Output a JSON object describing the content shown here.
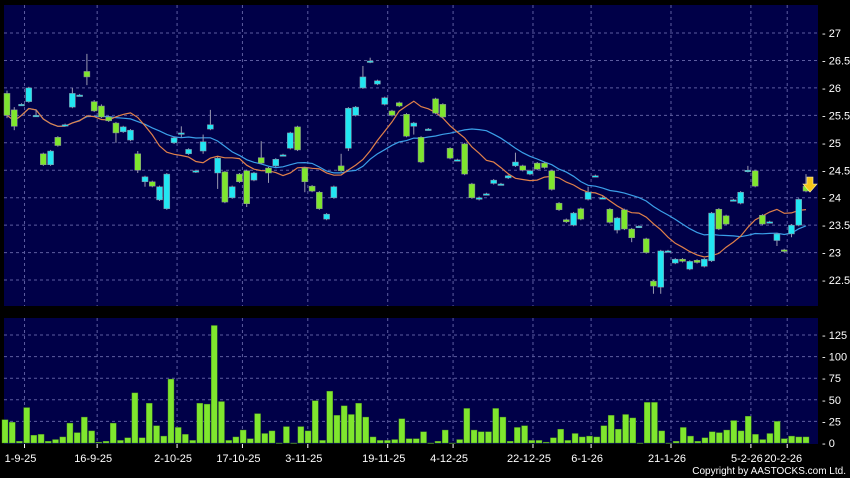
{
  "chart_data": [
    {
      "type": "candlestick",
      "panel": "price",
      "ylim": [
        22.2,
        27.5
      ],
      "yticks": [
        "22.5",
        "23",
        "23.5",
        "24",
        "24.5",
        "25",
        "25.5",
        "26",
        "26.5",
        "27"
      ],
      "grid": true,
      "colors": {
        "up": "#22e6f2",
        "down": "#7fe62e",
        "ma_short": "#e0804a",
        "ma_long": "#3b9fe8",
        "background": "#000048",
        "grid": "#5d5da0",
        "marker": "#f5c518"
      },
      "moving_averages": [
        10,
        20
      ],
      "last_marker": "down-arrow",
      "ohlc": [
        [
          25.9,
          25.95,
          25.45,
          25.5
        ],
        [
          25.6,
          25.65,
          25.23,
          25.3
        ],
        [
          25.7,
          25.72,
          25.68,
          25.7
        ],
        [
          25.75,
          26.02,
          25.73,
          26.0
        ],
        [
          25.5,
          25.6,
          25.47,
          25.5
        ],
        [
          24.8,
          24.82,
          24.58,
          24.6
        ],
        [
          24.6,
          24.87,
          24.58,
          24.85
        ],
        [
          25.1,
          25.12,
          24.93,
          24.95
        ],
        [
          25.33,
          25.35,
          25.31,
          25.33
        ],
        [
          25.65,
          26.0,
          25.63,
          25.9
        ],
        [
          25.87,
          25.89,
          25.85,
          25.87
        ],
        [
          26.3,
          26.62,
          26.05,
          26.2
        ],
        [
          25.75,
          25.78,
          25.56,
          25.58
        ],
        [
          25.67,
          25.7,
          25.45,
          25.47
        ],
        [
          25.47,
          25.49,
          25.38,
          25.4
        ],
        [
          25.36,
          25.38,
          25.0,
          25.18
        ],
        [
          25.2,
          25.31,
          25.18,
          25.29
        ],
        [
          25.05,
          25.25,
          25.03,
          25.23
        ],
        [
          24.8,
          24.85,
          24.45,
          24.5
        ],
        [
          24.29,
          24.4,
          24.2,
          24.38
        ],
        [
          24.29,
          24.31,
          24.19,
          24.21
        ],
        [
          23.96,
          24.22,
          23.94,
          24.2
        ],
        [
          23.8,
          24.45,
          23.78,
          24.43
        ],
        [
          25.0,
          25.11,
          24.98,
          25.09
        ],
        [
          25.18,
          25.3,
          25.1,
          25.18
        ],
        [
          24.8,
          24.9,
          24.78,
          24.88
        ],
        [
          24.49,
          24.51,
          24.45,
          24.49
        ],
        [
          24.85,
          25.15,
          24.8,
          25.02
        ],
        [
          25.25,
          25.6,
          25.23,
          25.33
        ],
        [
          24.45,
          24.74,
          24.16,
          24.72
        ],
        [
          24.47,
          24.49,
          23.9,
          23.92
        ],
        [
          24.0,
          24.22,
          23.98,
          24.2
        ],
        [
          24.43,
          24.45,
          24.27,
          24.29
        ],
        [
          24.49,
          24.51,
          23.83,
          23.89
        ],
        [
          24.32,
          24.47,
          24.3,
          24.45
        ],
        [
          24.73,
          25.03,
          24.61,
          24.63
        ],
        [
          24.54,
          24.56,
          24.27,
          24.45
        ],
        [
          24.58,
          24.72,
          24.56,
          24.7
        ],
        [
          24.78,
          24.8,
          24.76,
          24.78
        ],
        [
          24.9,
          25.2,
          24.88,
          25.18
        ],
        [
          25.29,
          25.31,
          24.85,
          24.87
        ],
        [
          24.54,
          24.56,
          24.1,
          24.29
        ],
        [
          24.21,
          24.23,
          24.1,
          24.12
        ],
        [
          24.1,
          24.12,
          23.78,
          23.8
        ],
        [
          23.61,
          23.72,
          23.59,
          23.7
        ],
        [
          24.0,
          24.22,
          23.98,
          24.2
        ],
        [
          24.58,
          24.8,
          24.47,
          24.49
        ],
        [
          24.9,
          25.65,
          24.85,
          25.63
        ],
        [
          25.5,
          25.67,
          25.48,
          25.65
        ],
        [
          26.0,
          26.4,
          25.98,
          26.2
        ],
        [
          26.49,
          26.55,
          26.45,
          26.49
        ],
        [
          26.07,
          26.15,
          26.05,
          26.13
        ],
        [
          25.7,
          25.84,
          25.68,
          25.82
        ],
        [
          25.58,
          25.6,
          25.48,
          25.5
        ],
        [
          25.73,
          25.75,
          25.65,
          25.67
        ],
        [
          25.52,
          25.54,
          25.1,
          25.12
        ],
        [
          25.3,
          25.38,
          25.15,
          25.36
        ],
        [
          25.1,
          25.12,
          24.63,
          24.65
        ],
        [
          25.25,
          25.27,
          25.23,
          25.25
        ],
        [
          25.8,
          25.82,
          25.52,
          25.54
        ],
        [
          25.7,
          25.72,
          25.45,
          25.47
        ],
        [
          24.9,
          24.92,
          24.7,
          24.72
        ],
        [
          24.69,
          24.71,
          24.67,
          24.69
        ],
        [
          24.98,
          25.0,
          24.41,
          24.43
        ],
        [
          24.25,
          24.27,
          23.98,
          24.0
        ],
        [
          23.97,
          24.02,
          23.95,
          24.0
        ],
        [
          24.07,
          24.09,
          24.05,
          24.07
        ],
        [
          24.26,
          24.34,
          24.24,
          24.32
        ],
        [
          24.25,
          24.27,
          24.23,
          24.25
        ],
        [
          24.36,
          24.42,
          24.34,
          24.4
        ],
        [
          24.58,
          24.82,
          24.56,
          24.65
        ],
        [
          24.58,
          24.6,
          24.48,
          24.5
        ],
        [
          24.43,
          24.51,
          24.41,
          24.49
        ],
        [
          24.63,
          24.65,
          24.5,
          24.52
        ],
        [
          24.63,
          24.65,
          24.53,
          24.55
        ],
        [
          24.49,
          24.51,
          24.13,
          24.15
        ],
        [
          23.9,
          23.92,
          23.76,
          23.78
        ],
        [
          23.6,
          23.62,
          23.54,
          23.56
        ],
        [
          23.5,
          23.74,
          23.48,
          23.72
        ],
        [
          23.8,
          23.82,
          23.59,
          23.61
        ],
        [
          23.97,
          24.2,
          23.95,
          24.1
        ],
        [
          24.4,
          24.42,
          24.38,
          24.4
        ],
        [
          24.0,
          24.02,
          23.98,
          24.0
        ],
        [
          23.79,
          23.81,
          23.53,
          23.55
        ],
        [
          23.41,
          23.65,
          23.35,
          23.63
        ],
        [
          23.78,
          23.8,
          23.41,
          23.43
        ],
        [
          23.43,
          23.45,
          23.19,
          23.27
        ],
        [
          23.48,
          23.5,
          23.46,
          23.48
        ],
        [
          23.25,
          23.27,
          22.98,
          23.0
        ],
        [
          22.48,
          22.5,
          22.25,
          22.39
        ],
        [
          22.37,
          23.05,
          22.25,
          23.03
        ],
        [
          23.03,
          23.05,
          23.01,
          23.03
        ],
        [
          22.81,
          22.9,
          22.79,
          22.88
        ],
        [
          22.88,
          22.9,
          22.82,
          22.84
        ],
        [
          22.7,
          22.86,
          22.68,
          22.84
        ],
        [
          22.86,
          22.88,
          22.8,
          22.82
        ],
        [
          22.75,
          22.9,
          22.73,
          22.88
        ],
        [
          22.85,
          23.74,
          22.83,
          23.72
        ],
        [
          23.79,
          23.81,
          23.41,
          23.43
        ],
        [
          23.67,
          23.69,
          23.5,
          23.52
        ],
        [
          23.96,
          23.98,
          23.94,
          23.96
        ],
        [
          23.9,
          24.12,
          23.88,
          24.1
        ],
        [
          24.5,
          24.58,
          24.46,
          24.5
        ],
        [
          24.49,
          24.51,
          24.19,
          24.21
        ],
        [
          23.68,
          23.7,
          23.5,
          23.52
        ],
        [
          23.56,
          23.58,
          23.54,
          23.56
        ],
        [
          23.22,
          23.36,
          23.12,
          23.34
        ],
        [
          23.05,
          23.07,
          23.0,
          23.02
        ],
        [
          23.34,
          23.52,
          23.28,
          23.5
        ],
        [
          23.5,
          23.99,
          23.48,
          23.97
        ],
        [
          24.21,
          24.43,
          24.1,
          24.12
        ]
      ]
    },
    {
      "type": "bar",
      "panel": "volume",
      "ylim": [
        0,
        140
      ],
      "yticks": [
        "0",
        "25",
        "50",
        "75",
        "100",
        "125"
      ],
      "grid": true,
      "color": "#7fe62e",
      "values": [
        27,
        24,
        2,
        41,
        9,
        10,
        2,
        4,
        7,
        23,
        12,
        30,
        14,
        1,
        2,
        23,
        3,
        6,
        58,
        6,
        46,
        20,
        8,
        74,
        18,
        10,
        3,
        46,
        45,
        136,
        48,
        3,
        7,
        15,
        5,
        34,
        11,
        14,
        0,
        19,
        0,
        19,
        14,
        49,
        3,
        60,
        32,
        43,
        33,
        46,
        30,
        7,
        3,
        3,
        4,
        28,
        5,
        5,
        13,
        0,
        2,
        15,
        0,
        4,
        40,
        15,
        13,
        13,
        40,
        30,
        2,
        18,
        20,
        3,
        3,
        1,
        6,
        16,
        3,
        11,
        7,
        8,
        7,
        20,
        32,
        16,
        33,
        29,
        0,
        47,
        47,
        14,
        0,
        2,
        18,
        8,
        2,
        6,
        13,
        12,
        15,
        26,
        14,
        31,
        10,
        4,
        11,
        25,
        5,
        8,
        7,
        7
      ]
    }
  ],
  "xaxis": {
    "ticks": [
      {
        "label": "1-9-25",
        "day": 2
      },
      {
        "label": "16-9-25",
        "day": 12
      },
      {
        "label": "2-10-25",
        "day": 23
      },
      {
        "label": "17-10-25",
        "day": 32
      },
      {
        "label": "3-11-25",
        "day": 41
      },
      {
        "label": "19-11-25",
        "day": 52
      },
      {
        "label": "4-12-25",
        "day": 61
      },
      {
        "label": "22-12-25",
        "day": 72
      },
      {
        "label": "6-1-26",
        "day": 80
      },
      {
        "label": "21-1-26",
        "day": 91
      },
      {
        "label": "5-2-26",
        "day": 102
      },
      {
        "label": "20-2-26",
        "day": 107
      }
    ]
  },
  "footer": {
    "copyright": "Copyright by AASTOCKS.com Ltd."
  }
}
